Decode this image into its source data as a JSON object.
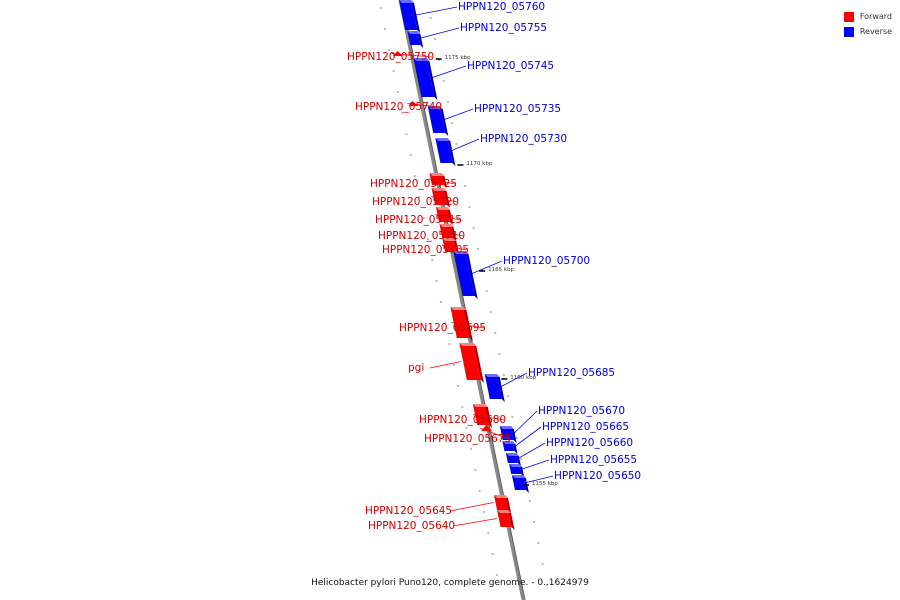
{
  "caption": "Helicobacter pylori Puno120, complete genome. - 0..1624979",
  "legend": {
    "forward_label": "Forward",
    "reverse_label": "Reverse",
    "forward_color": "#ff0000",
    "reverse_color": "#0000ff"
  },
  "kbp_labels": [
    "1175 kbp",
    "1170 kbp",
    "1165 kbp",
    "1160 kbp",
    "1155 kbp"
  ],
  "genes": [
    {
      "name": "HPPN120_05760",
      "strand": "reverse"
    },
    {
      "name": "HPPN120_05755",
      "strand": "reverse"
    },
    {
      "name": "HPPN120_05750",
      "strand": "forward"
    },
    {
      "name": "HPPN120_05745",
      "strand": "reverse"
    },
    {
      "name": "HPPN120_05740",
      "strand": "forward"
    },
    {
      "name": "HPPN120_05735",
      "strand": "reverse"
    },
    {
      "name": "HPPN120_05730",
      "strand": "reverse"
    },
    {
      "name": "HPPN120_05725",
      "strand": "forward"
    },
    {
      "name": "HPPN120_05720",
      "strand": "forward"
    },
    {
      "name": "HPPN120_05715",
      "strand": "forward"
    },
    {
      "name": "HPPN120_05710",
      "strand": "forward"
    },
    {
      "name": "HPPN120_05705",
      "strand": "forward"
    },
    {
      "name": "HPPN120_05700",
      "strand": "reverse"
    },
    {
      "name": "HPPN120_05695",
      "strand": "forward"
    },
    {
      "name": "pgi",
      "strand": "forward"
    },
    {
      "name": "HPPN120_05685",
      "strand": "reverse"
    },
    {
      "name": "HPPN120_05680",
      "strand": "forward"
    },
    {
      "name": "HPPN120_05675",
      "strand": "forward"
    },
    {
      "name": "HPPN120_05670",
      "strand": "reverse"
    },
    {
      "name": "HPPN120_05665",
      "strand": "reverse"
    },
    {
      "name": "HPPN120_05660",
      "strand": "reverse"
    },
    {
      "name": "HPPN120_05655",
      "strand": "reverse"
    },
    {
      "name": "HPPN120_05650",
      "strand": "reverse"
    },
    {
      "name": "HPPN120_05645",
      "strand": "forward"
    },
    {
      "name": "HPPN120_05640",
      "strand": "forward"
    }
  ]
}
